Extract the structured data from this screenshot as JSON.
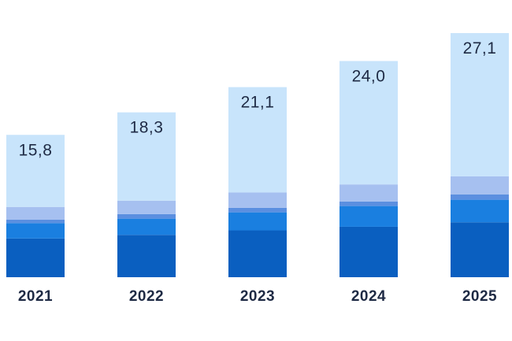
{
  "chart_data": {
    "type": "bar",
    "stacked": true,
    "categories": [
      "2021",
      "2022",
      "2023",
      "2024",
      "2025"
    ],
    "totals": [
      "15,8",
      "18,3",
      "21,1",
      "24,0",
      "27,1"
    ],
    "series": [
      {
        "color": "#0a5fc0",
        "values": [
          4.3,
          4.7,
          5.2,
          5.6,
          6.1
        ]
      },
      {
        "color": "#1a7fe0",
        "values": [
          1.7,
          1.8,
          2.0,
          2.3,
          2.5
        ]
      },
      {
        "color": "#5b8fe0",
        "values": [
          0.4,
          0.5,
          0.5,
          0.5,
          0.6
        ]
      },
      {
        "color": "#a6c0f0",
        "values": [
          1.4,
          1.5,
          1.7,
          1.9,
          2.0
        ]
      },
      {
        "color": "#c8e4fb",
        "values": [
          8.0,
          9.8,
          11.7,
          13.7,
          15.9
        ]
      }
    ],
    "ylim": [
      0,
      28.5
    ],
    "grid": false,
    "legend": "none"
  }
}
